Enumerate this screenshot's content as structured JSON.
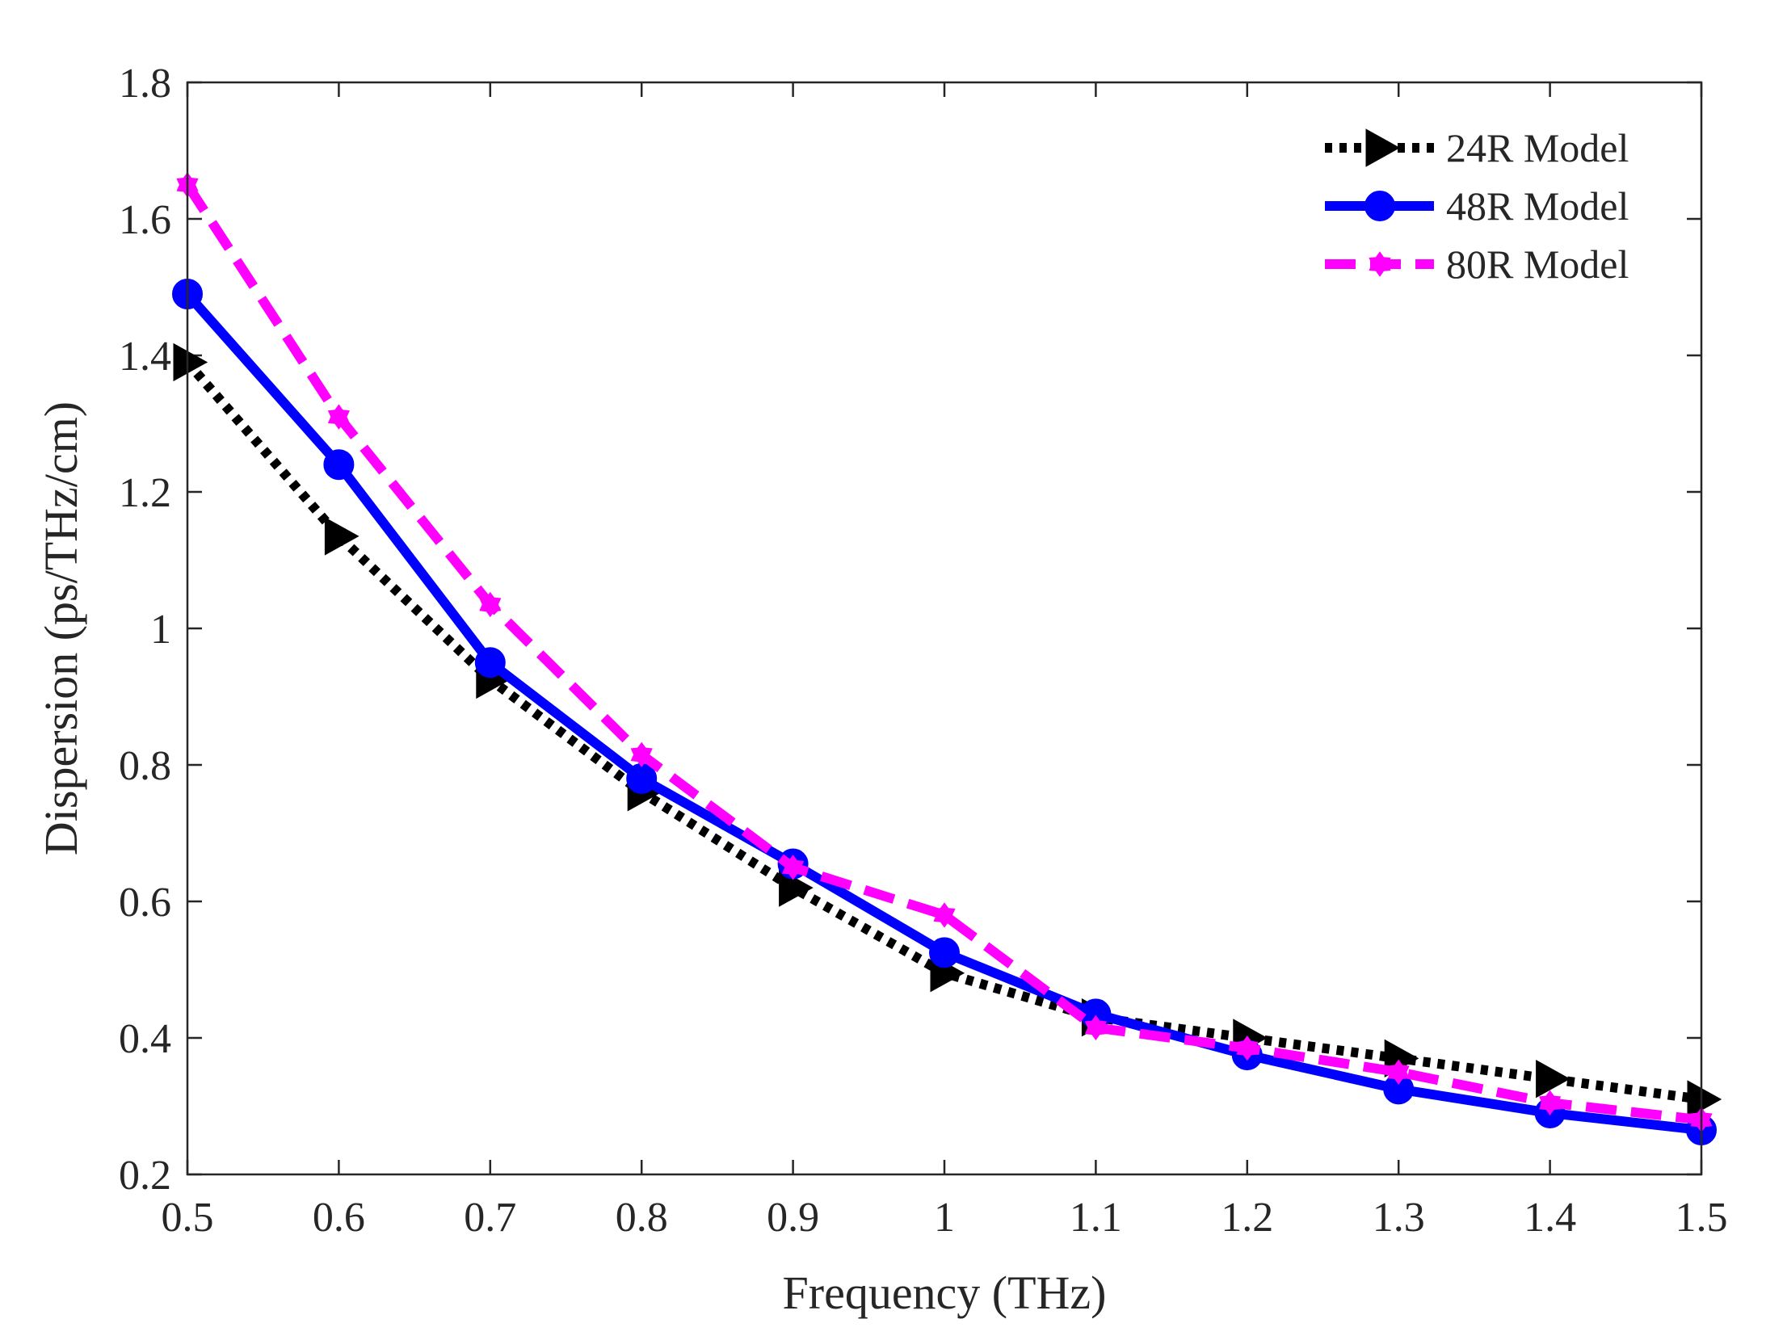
{
  "chart_data": {
    "type": "line",
    "title": "",
    "xlabel": "Frequency (THz)",
    "ylabel": "Dispersion (ps/THz/cm)",
    "xlim": [
      0.5,
      1.5
    ],
    "ylim": [
      0.2,
      1.8
    ],
    "x": [
      0.5,
      0.6,
      0.7,
      0.8,
      0.9,
      1.0,
      1.1,
      1.2,
      1.3,
      1.4,
      1.5
    ],
    "xticks": [
      "0.5",
      "0.6",
      "0.7",
      "0.8",
      "0.9",
      "1",
      "1.1",
      "1.2",
      "1.3",
      "1.4",
      "1.5"
    ],
    "yticks": [
      "0.2",
      "0.4",
      "0.6",
      "0.8",
      "1",
      "1.2",
      "1.4",
      "1.6",
      "1.8"
    ],
    "grid": false,
    "legend_position": "top-right",
    "series": [
      {
        "name": "24R Model",
        "color": "#000000",
        "line_style": "dotted",
        "marker": "triangle-right",
        "values": [
          1.39,
          1.135,
          0.925,
          0.76,
          0.62,
          0.495,
          0.43,
          0.4,
          0.37,
          0.34,
          0.31
        ]
      },
      {
        "name": "48R Model",
        "color": "#0000ff",
        "line_style": "solid",
        "marker": "circle",
        "values": [
          1.49,
          1.24,
          0.95,
          0.78,
          0.655,
          0.525,
          0.435,
          0.375,
          0.325,
          0.29,
          0.265
        ]
      },
      {
        "name": "80R Model",
        "color": "#ff00ff",
        "line_style": "dashed",
        "marker": "hexagram",
        "values": [
          1.65,
          1.31,
          1.035,
          0.815,
          0.65,
          0.58,
          0.415,
          0.385,
          0.35,
          0.305,
          0.28
        ]
      }
    ]
  }
}
